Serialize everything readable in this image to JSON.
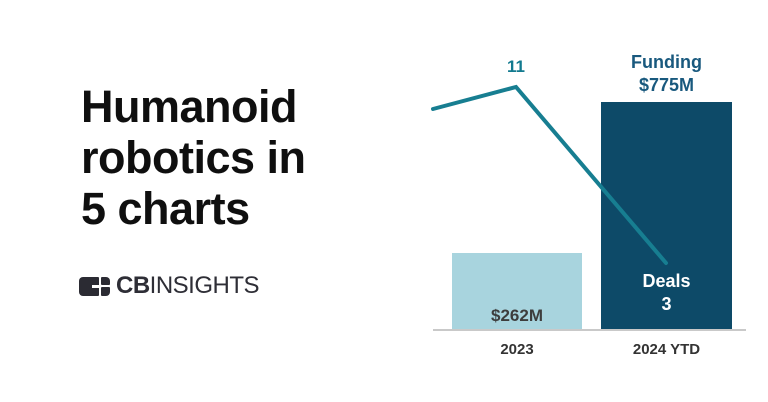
{
  "left_panel": {
    "title_lines": [
      "Humanoid",
      "robotics in",
      "5 charts"
    ],
    "logo": {
      "icon": "cb-insights-mark",
      "bold_text": "CB",
      "regular_text": "INSIGHTS"
    }
  },
  "chart": {
    "x_labels": [
      "2023",
      "2024 YTD"
    ],
    "bar_2023_label": "$262M",
    "bar_2024_label_line1": "Funding",
    "bar_2024_label_line2": "$775M",
    "line_2023_label": "11",
    "line_2024_label_line1": "Deals",
    "line_2024_label_line2": "3",
    "colors": {
      "bar_2023": "#a8d4de",
      "bar_2024": "#0d4a68",
      "line": "#177e91",
      "line_label": "#127a8f",
      "funding_label": "#19597e",
      "deals_text": "#ffffff",
      "bar_2023_text": "#3d3d3d",
      "axis_text": "#333333",
      "axis": "#c9c9c9"
    }
  },
  "chart_data": {
    "type": "combo",
    "categories": [
      "2023",
      "2024 YTD"
    ],
    "series": [
      {
        "name": "Funding",
        "type": "bar",
        "values": [
          262,
          775
        ],
        "unit": "$M",
        "labels": [
          "$262M",
          "$775M"
        ]
      },
      {
        "name": "Deals",
        "type": "line",
        "values": [
          11,
          3
        ],
        "labels": [
          "11",
          "3"
        ],
        "lead_in_estimated_value": 10
      }
    ],
    "title": "",
    "xlabel": "",
    "ylabel": "",
    "grid": false,
    "legend_position": "labels-inline-on-chart"
  }
}
